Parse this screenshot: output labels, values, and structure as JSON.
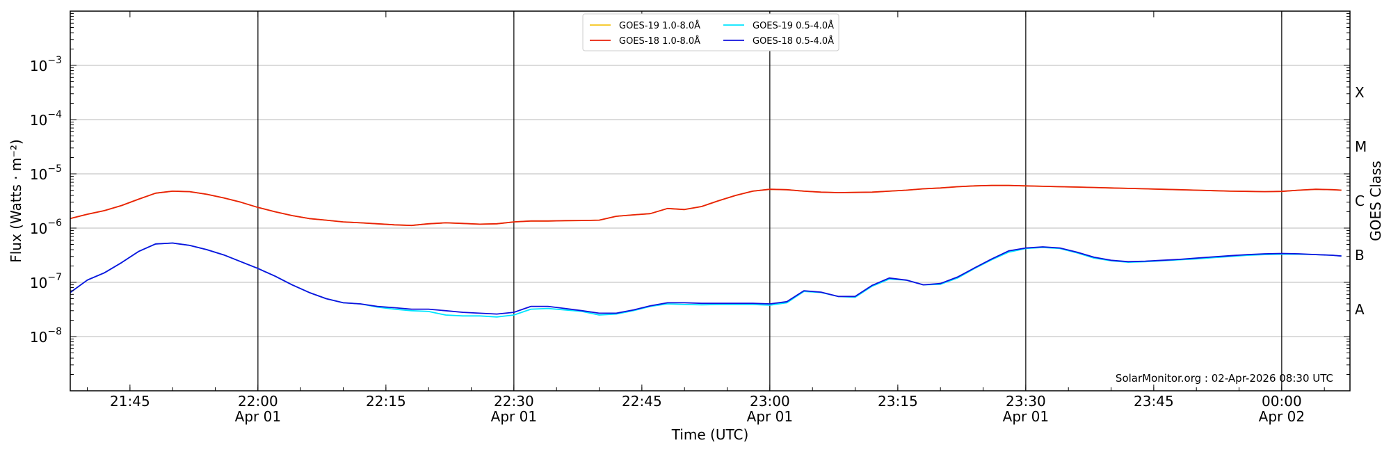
{
  "chart_data": {
    "type": "line",
    "title": "",
    "xlabel": "Time (UTC)",
    "ylabel": "Flux (Watts · m⁻²)",
    "y2label": "GOES Class",
    "yscale": "log",
    "xlim": [
      "2026-04-01T21:38",
      "2026-04-02T00:08"
    ],
    "ylim": [
      1e-09,
      0.01
    ],
    "grid": "horizontal",
    "legend_position": "top-center",
    "credit": "SolarMonitor.org : 02-Apr-2026 08:30 UTC",
    "x_ticks": [
      {
        "value": "2026-04-01T21:45",
        "time": "21:45",
        "date": ""
      },
      {
        "value": "2026-04-01T22:00",
        "time": "22:00",
        "date": "Apr 01"
      },
      {
        "value": "2026-04-01T22:15",
        "time": "22:15",
        "date": ""
      },
      {
        "value": "2026-04-01T22:30",
        "time": "22:30",
        "date": "Apr 01"
      },
      {
        "value": "2026-04-01T22:45",
        "time": "22:45",
        "date": ""
      },
      {
        "value": "2026-04-01T23:00",
        "time": "23:00",
        "date": "Apr 01"
      },
      {
        "value": "2026-04-01T23:15",
        "time": "23:15",
        "date": ""
      },
      {
        "value": "2026-04-01T23:30",
        "time": "23:30",
        "date": "Apr 01"
      },
      {
        "value": "2026-04-01T23:45",
        "time": "23:45",
        "date": ""
      },
      {
        "value": "2026-04-02T00:00",
        "time": "00:00",
        "date": "Apr 02"
      }
    ],
    "vertical_lines": [
      "2026-04-01T22:00",
      "2026-04-01T22:30",
      "2026-04-01T23:00",
      "2026-04-01T23:30",
      "2026-04-02T00:00"
    ],
    "y_ticks": [
      {
        "value": 1e-08,
        "base": "10",
        "exp": "−8"
      },
      {
        "value": 1e-07,
        "base": "10",
        "exp": "−7"
      },
      {
        "value": 1e-06,
        "base": "10",
        "exp": "−6"
      },
      {
        "value": 1e-05,
        "base": "10",
        "exp": "−5"
      },
      {
        "value": 0.0001,
        "base": "10",
        "exp": "−4"
      },
      {
        "value": 0.001,
        "base": "10",
        "exp": "−3"
      }
    ],
    "goes_classes": [
      {
        "label": "A",
        "flux": 3.16e-08
      },
      {
        "label": "B",
        "flux": 3.16e-07
      },
      {
        "label": "C",
        "flux": 3.16e-06
      },
      {
        "label": "M",
        "flux": 3.16e-05
      },
      {
        "label": "X",
        "flux": 0.000316
      }
    ],
    "x": [
      "2026-04-01T21:38",
      "2026-04-01T21:40",
      "2026-04-01T21:42",
      "2026-04-01T21:44",
      "2026-04-01T21:46",
      "2026-04-01T21:48",
      "2026-04-01T21:50",
      "2026-04-01T21:52",
      "2026-04-01T21:54",
      "2026-04-01T21:56",
      "2026-04-01T21:58",
      "2026-04-01T22:00",
      "2026-04-01T22:02",
      "2026-04-01T22:04",
      "2026-04-01T22:06",
      "2026-04-01T22:08",
      "2026-04-01T22:10",
      "2026-04-01T22:12",
      "2026-04-01T22:14",
      "2026-04-01T22:16",
      "2026-04-01T22:18",
      "2026-04-01T22:20",
      "2026-04-01T22:22",
      "2026-04-01T22:24",
      "2026-04-01T22:26",
      "2026-04-01T22:28",
      "2026-04-01T22:30",
      "2026-04-01T22:32",
      "2026-04-01T22:34",
      "2026-04-01T22:36",
      "2026-04-01T22:38",
      "2026-04-01T22:40",
      "2026-04-01T22:42",
      "2026-04-01T22:44",
      "2026-04-01T22:46",
      "2026-04-01T22:48",
      "2026-04-01T22:50",
      "2026-04-01T22:52",
      "2026-04-01T22:54",
      "2026-04-01T22:56",
      "2026-04-01T22:58",
      "2026-04-01T23:00",
      "2026-04-01T23:02",
      "2026-04-01T23:04",
      "2026-04-01T23:06",
      "2026-04-01T23:08",
      "2026-04-01T23:10",
      "2026-04-01T23:12",
      "2026-04-01T23:14",
      "2026-04-01T23:16",
      "2026-04-01T23:18",
      "2026-04-01T23:20",
      "2026-04-01T23:22",
      "2026-04-01T23:24",
      "2026-04-01T23:26",
      "2026-04-01T23:28",
      "2026-04-01T23:30",
      "2026-04-01T23:32",
      "2026-04-01T23:34",
      "2026-04-01T23:36",
      "2026-04-01T23:38",
      "2026-04-01T23:40",
      "2026-04-01T23:42",
      "2026-04-01T23:44",
      "2026-04-01T23:46",
      "2026-04-01T23:48",
      "2026-04-01T23:50",
      "2026-04-01T23:52",
      "2026-04-01T23:54",
      "2026-04-01T23:56",
      "2026-04-01T23:58",
      "2026-04-02T00:00",
      "2026-04-02T00:02",
      "2026-04-02T00:04",
      "2026-04-02T00:06",
      "2026-04-02T00:07"
    ],
    "series": [
      {
        "name": "GOES-19 1.0-8.0Å",
        "color": "#f5c518",
        "values": [
          1.5e-06,
          1.8e-06,
          2.1e-06,
          2.6e-06,
          3.4e-06,
          4.4e-06,
          4.8e-06,
          4.7e-06,
          4.2e-06,
          3.6e-06,
          3e-06,
          2.4e-06,
          2e-06,
          1.7e-06,
          1.5e-06,
          1.4e-06,
          1.3e-06,
          1.25e-06,
          1.2e-06,
          1.15e-06,
          1.12e-06,
          1.2e-06,
          1.25e-06,
          1.22e-06,
          1.18e-06,
          1.2e-06,
          1.3e-06,
          1.35e-06,
          1.35e-06,
          1.37e-06,
          1.38e-06,
          1.4e-06,
          1.65e-06,
          1.75e-06,
          1.85e-06,
          2.3e-06,
          2.2e-06,
          2.5e-06,
          3.2e-06,
          4e-06,
          4.8e-06,
          5.2e-06,
          5.1e-06,
          4.8e-06,
          4.6e-06,
          4.5e-06,
          4.55e-06,
          4.6e-06,
          4.8e-06,
          5e-06,
          5.3e-06,
          5.5e-06,
          5.8e-06,
          6e-06,
          6.1e-06,
          6.1e-06,
          6e-06,
          5.9e-06,
          5.8e-06,
          5.7e-06,
          5.6e-06,
          5.5e-06,
          5.4e-06,
          5.3e-06,
          5.2e-06,
          5.1e-06,
          5e-06,
          4.9e-06,
          4.8e-06,
          4.75e-06,
          4.7e-06,
          4.75e-06,
          5e-06,
          5.2e-06,
          5.1e-06,
          5e-06
        ]
      },
      {
        "name": "GOES-19 0.5-4.0Å",
        "color": "#00e5ff",
        "values": [
          6.5e-08,
          1.1e-07,
          1.5e-07,
          2.3e-07,
          3.7e-07,
          5.1e-07,
          5.3e-07,
          4.8e-07,
          4e-07,
          3.2e-07,
          2.4e-07,
          1.8e-07,
          1.3e-07,
          9e-08,
          6.5e-08,
          5e-08,
          4.2e-08,
          4e-08,
          3.5e-08,
          3.2e-08,
          3e-08,
          2.9e-08,
          2.5e-08,
          2.4e-08,
          2.4e-08,
          2.3e-08,
          2.5e-08,
          3.2e-08,
          3.3e-08,
          3.1e-08,
          2.9e-08,
          2.5e-08,
          2.6e-08,
          3e-08,
          3.6e-08,
          4e-08,
          3.9e-08,
          3.85e-08,
          3.9e-08,
          3.9e-08,
          3.9e-08,
          3.8e-08,
          4.2e-08,
          6.8e-08,
          6.5e-08,
          5.5e-08,
          5.3e-08,
          8.5e-08,
          1.15e-07,
          1.1e-07,
          9e-08,
          9.2e-08,
          1.2e-07,
          1.8e-07,
          2.6e-07,
          3.6e-07,
          4.2e-07,
          4.4e-07,
          4.2e-07,
          3.5e-07,
          2.8e-07,
          2.5e-07,
          2.35e-07,
          2.4e-07,
          2.5e-07,
          2.6e-07,
          2.7e-07,
          2.85e-07,
          3e-07,
          3.15e-07,
          3.25e-07,
          3.3e-07,
          3.3e-07,
          3.25e-07,
          3.15e-07,
          3.05e-07
        ]
      },
      {
        "name": "GOES-18 1.0-8.0Å",
        "color": "#e8200a",
        "values": [
          1.5e-06,
          1.8e-06,
          2.1e-06,
          2.6e-06,
          3.4e-06,
          4.4e-06,
          4.8e-06,
          4.7e-06,
          4.2e-06,
          3.6e-06,
          3e-06,
          2.4e-06,
          2e-06,
          1.7e-06,
          1.5e-06,
          1.4e-06,
          1.3e-06,
          1.25e-06,
          1.2e-06,
          1.15e-06,
          1.12e-06,
          1.2e-06,
          1.25e-06,
          1.22e-06,
          1.18e-06,
          1.2e-06,
          1.3e-06,
          1.35e-06,
          1.35e-06,
          1.37e-06,
          1.38e-06,
          1.4e-06,
          1.65e-06,
          1.75e-06,
          1.85e-06,
          2.3e-06,
          2.2e-06,
          2.5e-06,
          3.2e-06,
          4e-06,
          4.8e-06,
          5.2e-06,
          5.1e-06,
          4.8e-06,
          4.6e-06,
          4.5e-06,
          4.55e-06,
          4.6e-06,
          4.8e-06,
          5e-06,
          5.3e-06,
          5.5e-06,
          5.8e-06,
          6e-06,
          6.1e-06,
          6.1e-06,
          6e-06,
          5.9e-06,
          5.8e-06,
          5.7e-06,
          5.6e-06,
          5.5e-06,
          5.4e-06,
          5.3e-06,
          5.2e-06,
          5.1e-06,
          5e-06,
          4.9e-06,
          4.8e-06,
          4.75e-06,
          4.7e-06,
          4.75e-06,
          5e-06,
          5.2e-06,
          5.1e-06,
          5e-06
        ]
      },
      {
        "name": "GOES-18 0.5-4.0Å",
        "color": "#1010dd",
        "values": [
          6.5e-08,
          1.1e-07,
          1.5e-07,
          2.3e-07,
          3.7e-07,
          5.1e-07,
          5.3e-07,
          4.8e-07,
          4e-07,
          3.2e-07,
          2.4e-07,
          1.8e-07,
          1.3e-07,
          9e-08,
          6.5e-08,
          5e-08,
          4.2e-08,
          4e-08,
          3.6e-08,
          3.4e-08,
          3.2e-08,
          3.2e-08,
          3e-08,
          2.8e-08,
          2.7e-08,
          2.6e-08,
          2.8e-08,
          3.6e-08,
          3.6e-08,
          3.3e-08,
          3e-08,
          2.7e-08,
          2.7e-08,
          3.1e-08,
          3.7e-08,
          4.2e-08,
          4.2e-08,
          4.1e-08,
          4.1e-08,
          4.1e-08,
          4.1e-08,
          4e-08,
          4.4e-08,
          7e-08,
          6.6e-08,
          5.5e-08,
          5.5e-08,
          8.8e-08,
          1.2e-07,
          1.1e-07,
          9e-08,
          9.5e-08,
          1.25e-07,
          1.85e-07,
          2.7e-07,
          3.8e-07,
          4.3e-07,
          4.5e-07,
          4.3e-07,
          3.6e-07,
          2.9e-07,
          2.55e-07,
          2.4e-07,
          2.45e-07,
          2.55e-07,
          2.65e-07,
          2.8e-07,
          2.95e-07,
          3.1e-07,
          3.25e-07,
          3.35e-07,
          3.4e-07,
          3.35e-07,
          3.25e-07,
          3.15e-07,
          3.05e-07
        ]
      }
    ]
  }
}
